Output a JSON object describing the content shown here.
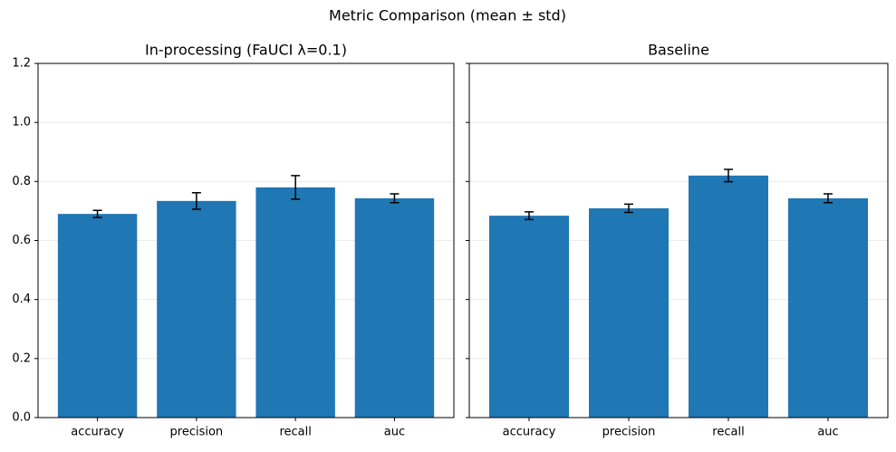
{
  "title": "Metric Comparison (mean ± std)",
  "chart_data": [
    {
      "type": "bar",
      "title": "In-processing (FaUCI λ=0.1)",
      "categories": [
        "accuracy",
        "precision",
        "recall",
        "auc"
      ],
      "values": [
        0.69,
        0.734,
        0.78,
        0.743
      ],
      "errors": [
        0.012,
        0.028,
        0.04,
        0.015
      ],
      "color": "#1f77b4",
      "ylim": [
        0,
        1.2
      ],
      "yticks": [
        {
          "value": 0,
          "label": "0.0"
        },
        0.2,
        0.4,
        0.6,
        0.8,
        {
          "value": 1,
          "label": "1.0"
        },
        1.2
      ],
      "grid": true
    },
    {
      "type": "bar",
      "title": "Baseline",
      "categories": [
        "accuracy",
        "precision",
        "recall",
        "auc"
      ],
      "values": [
        0.684,
        0.709,
        0.82,
        0.743
      ],
      "errors": [
        0.013,
        0.014,
        0.021,
        0.015
      ],
      "color": "#1f77b4",
      "ylim": [
        0,
        1.2
      ],
      "yticks": [
        0,
        0.2,
        0.4,
        0.6,
        0.8,
        1,
        1.2
      ],
      "grid": true
    }
  ]
}
